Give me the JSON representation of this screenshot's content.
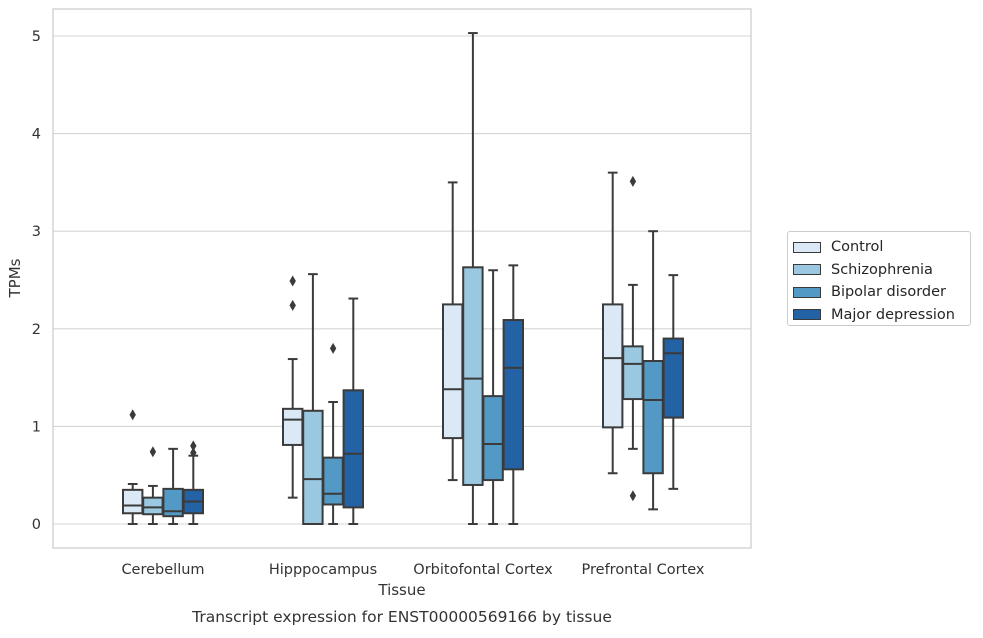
{
  "chart_data": {
    "type": "boxplot",
    "title": "",
    "caption": "Transcript expression for ENST00000569166 by tissue",
    "xlabel": "Tissue",
    "ylabel": "TPMs",
    "ylim": [
      -0.24,
      5.29
    ],
    "yticks": [
      0,
      1,
      2,
      3,
      4,
      5
    ],
    "grid": true,
    "legend_position": "right",
    "categories": [
      "Cerebellum",
      "Hipppocampus",
      "Orbitofontal Cortex",
      "Prefrontal Cortex"
    ],
    "series": [
      {
        "name": "Control",
        "color": "#dbe9f6",
        "boxes": [
          {
            "whislo": 0.0,
            "q1": 0.11,
            "med": 0.19,
            "q3": 0.35,
            "whishi": 0.41,
            "fliers": [
              1.12
            ]
          },
          {
            "whislo": 0.27,
            "q1": 0.81,
            "med": 1.07,
            "q3": 1.18,
            "whishi": 1.69,
            "fliers": [
              2.49,
              2.24
            ]
          },
          {
            "whislo": 0.45,
            "q1": 0.88,
            "med": 1.38,
            "q3": 2.25,
            "whishi": 3.5,
            "fliers": []
          },
          {
            "whislo": 0.52,
            "q1": 0.99,
            "med": 1.7,
            "q3": 2.25,
            "whishi": 3.6,
            "fliers": []
          }
        ]
      },
      {
        "name": "Schizophrenia",
        "color": "#9ac8e0",
        "boxes": [
          {
            "whislo": 0.0,
            "q1": 0.1,
            "med": 0.17,
            "q3": 0.27,
            "whishi": 0.39,
            "fliers": [
              0.74
            ]
          },
          {
            "whislo": 0.0,
            "q1": 0.0,
            "med": 0.46,
            "q3": 1.16,
            "whishi": 2.56,
            "fliers": []
          },
          {
            "whislo": 0.0,
            "q1": 0.4,
            "med": 1.49,
            "q3": 2.63,
            "whishi": 5.03,
            "fliers": []
          },
          {
            "whislo": 0.77,
            "q1": 1.28,
            "med": 1.64,
            "q3": 1.82,
            "whishi": 2.45,
            "fliers": [
              3.51,
              0.29
            ]
          }
        ]
      },
      {
        "name": "Bipolar disorder",
        "color": "#5399c6",
        "boxes": [
          {
            "whislo": 0.0,
            "q1": 0.08,
            "med": 0.13,
            "q3": 0.36,
            "whishi": 0.77,
            "fliers": []
          },
          {
            "whislo": 0.0,
            "q1": 0.2,
            "med": 0.31,
            "q3": 0.68,
            "whishi": 1.25,
            "fliers": [
              1.8
            ]
          },
          {
            "whislo": 0.0,
            "q1": 0.45,
            "med": 0.82,
            "q3": 1.31,
            "whishi": 2.6,
            "fliers": []
          },
          {
            "whislo": 0.15,
            "q1": 0.52,
            "med": 1.27,
            "q3": 1.67,
            "whishi": 3.0,
            "fliers": []
          }
        ]
      },
      {
        "name": "Major depression",
        "color": "#2362a5",
        "boxes": [
          {
            "whislo": 0.0,
            "q1": 0.11,
            "med": 0.23,
            "q3": 0.35,
            "whishi": 0.7,
            "fliers": [
              0.8,
              0.73
            ]
          },
          {
            "whislo": 0.0,
            "q1": 0.17,
            "med": 0.72,
            "q3": 1.37,
            "whishi": 2.31,
            "fliers": []
          },
          {
            "whislo": 0.0,
            "q1": 0.56,
            "med": 1.6,
            "q3": 2.09,
            "whishi": 2.65,
            "fliers": []
          },
          {
            "whislo": 0.36,
            "q1": 1.09,
            "med": 1.75,
            "q3": 1.9,
            "whishi": 2.55,
            "fliers": []
          }
        ]
      }
    ]
  }
}
